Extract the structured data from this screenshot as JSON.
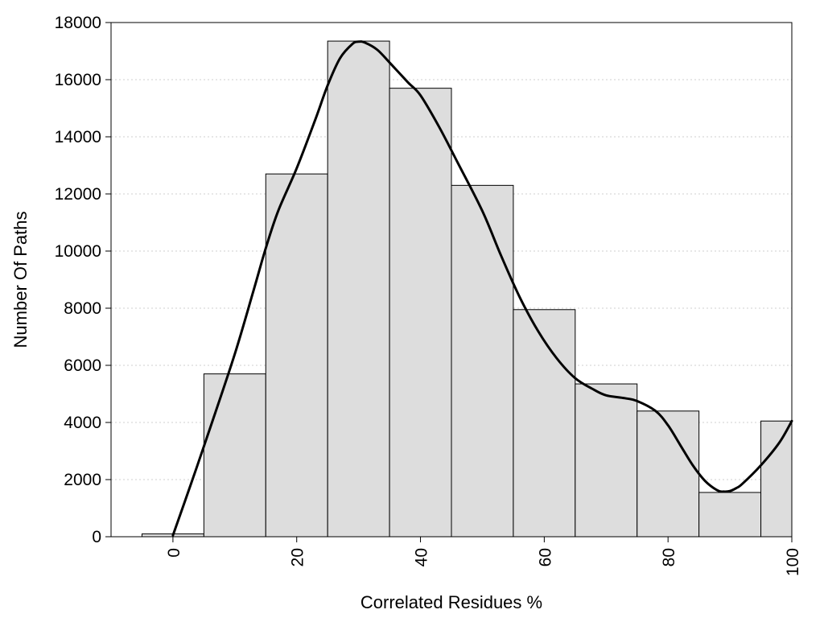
{
  "chart_data": {
    "type": "bar",
    "title": "",
    "xlabel": "Correlated Residues %",
    "ylabel": "Number Of Paths",
    "xlim": [
      -10,
      100
    ],
    "ylim": [
      0,
      18000
    ],
    "grid": "horizontal",
    "x_ticks": [
      "0",
      "20",
      "40",
      "60",
      "80",
      "100"
    ],
    "y_ticks": [
      "0",
      "2000",
      "4000",
      "6000",
      "8000",
      "10000",
      "12000",
      "14000",
      "16000",
      "18000"
    ],
    "bins": [
      {
        "start": -5,
        "end": 5,
        "value": 100
      },
      {
        "start": 5,
        "end": 15,
        "value": 5700
      },
      {
        "start": 15,
        "end": 25,
        "value": 12700
      },
      {
        "start": 25,
        "end": 35,
        "value": 17350
      },
      {
        "start": 35,
        "end": 45,
        "value": 15700
      },
      {
        "start": 45,
        "end": 55,
        "value": 12300
      },
      {
        "start": 55,
        "end": 65,
        "value": 7950
      },
      {
        "start": 65,
        "end": 75,
        "value": 5350
      },
      {
        "start": 75,
        "end": 85,
        "value": 4400
      },
      {
        "start": 85,
        "end": 95,
        "value": 1550
      },
      {
        "start": 95,
        "end": 100,
        "value": 4050
      }
    ],
    "density_curve": {
      "x": [
        0,
        3,
        6,
        10,
        13,
        15,
        17,
        20,
        23,
        25,
        27,
        29,
        30,
        31,
        33,
        35,
        38,
        40,
        43,
        46,
        50,
        53,
        56,
        59,
        62,
        65,
        68,
        70,
        73,
        75,
        78,
        80,
        82,
        84,
        86,
        88,
        89,
        90,
        91,
        92,
        95,
        98,
        100
      ],
      "y": [
        50,
        1900,
        3800,
        6400,
        8600,
        10100,
        11400,
        12900,
        14600,
        15800,
        16750,
        17250,
        17330,
        17300,
        17050,
        16600,
        15900,
        15450,
        14350,
        13100,
        11400,
        9850,
        8400,
        7200,
        6250,
        5550,
        5150,
        4950,
        4850,
        4750,
        4400,
        3900,
        3200,
        2500,
        1950,
        1620,
        1580,
        1600,
        1700,
        1850,
        2500,
        3300,
        4050
      ]
    },
    "colors": {
      "bar_fill": "#dddddd",
      "bar_stroke": "#000000",
      "curve": "#000000",
      "grid": "#cfcfcf"
    }
  }
}
